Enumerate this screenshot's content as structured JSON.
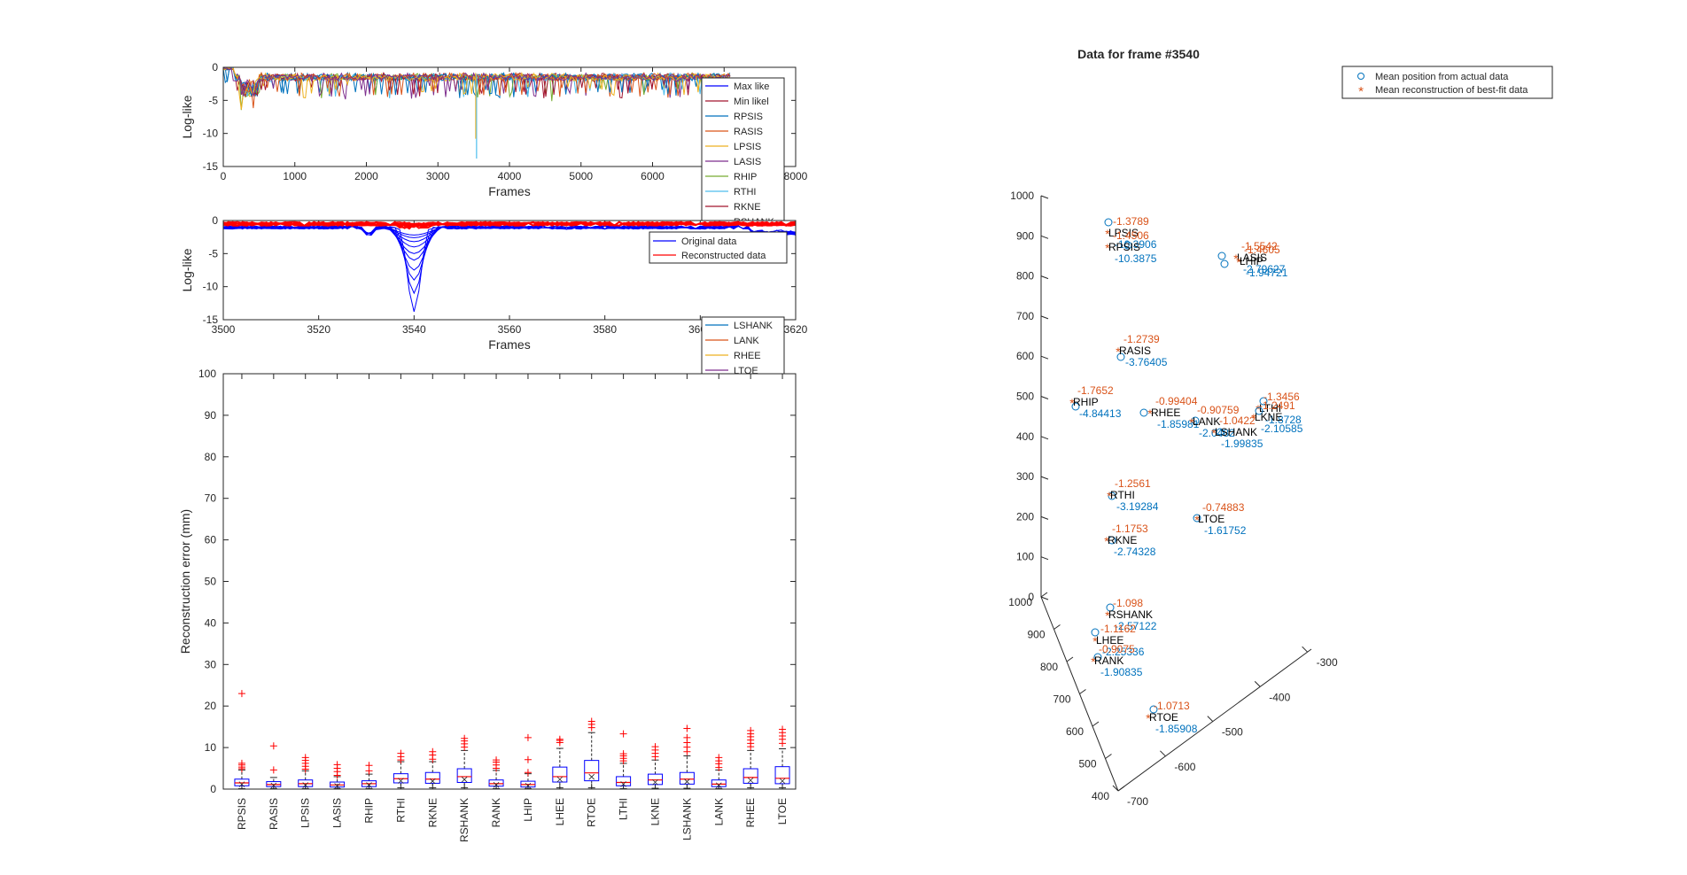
{
  "figure": {
    "colors": {
      "axis": "#262626",
      "blue": "#0072BD",
      "orange": "#D95319",
      "yellow": "#EDB120",
      "purple": "#7E2F8E",
      "green": "#77AC30",
      "cyan": "#4DBEEE",
      "dred": "#A2142F",
      "pureblue": "#0000FF",
      "purered": "#FF0000"
    }
  },
  "chart_data": [
    {
      "id": "loglike_full",
      "type": "line",
      "xlabel": "Frames",
      "ylabel": "Log-like",
      "xlim": [
        0,
        8000
      ],
      "ylim": [
        -15,
        0
      ],
      "xticks": [
        0,
        1000,
        2000,
        3000,
        4000,
        5000,
        6000,
        7000,
        8000
      ],
      "xtick_labels": [
        "0",
        "1000",
        "2000",
        "3000",
        "4000",
        "5000",
        "6000",
        "",
        "8000"
      ],
      "yticks": [
        -15,
        -10,
        -5,
        0
      ],
      "data_extent": [
        0,
        7100
      ],
      "baseline": -1.2,
      "early_dip": {
        "x": [
          250,
          500
        ],
        "y": -4.5
      },
      "spike": {
        "x": 3540,
        "y": -13.8
      },
      "legend": {
        "location": "northeast",
        "entries": [
          {
            "name": "Max like",
            "color": "#0000FF"
          },
          {
            "name": "Min likel",
            "color": "#A2142F"
          },
          {
            "name": "RPSIS",
            "color": "#0072BD"
          },
          {
            "name": "RASIS",
            "color": "#D95319"
          },
          {
            "name": "LPSIS",
            "color": "#EDB120"
          },
          {
            "name": "LASIS",
            "color": "#7E2F8E"
          },
          {
            "name": "RHIP",
            "color": "#77AC30"
          },
          {
            "name": "RTHI",
            "color": "#4DBEEE"
          },
          {
            "name": "RKNE",
            "color": "#A2142F"
          },
          {
            "name": "RSHANK",
            "color": "#0072BD"
          },
          {
            "name": "LSHANK",
            "color": "#0072BD"
          },
          {
            "name": "LANK",
            "color": "#D95319"
          },
          {
            "name": "RHEE",
            "color": "#EDB120"
          },
          {
            "name": "LTOE",
            "color": "#7E2F8E"
          }
        ]
      }
    },
    {
      "id": "loglike_zoom",
      "type": "line",
      "xlabel": "Frames",
      "ylabel": "Log-like",
      "xlim": [
        3500,
        3620
      ],
      "ylim": [
        -15,
        0
      ],
      "xticks": [
        3500,
        3520,
        3540,
        3560,
        3580,
        3600,
        3620
      ],
      "xtick_labels": [
        "3500",
        "3520",
        "3540",
        "3560",
        "3580",
        "3600",
        "3620"
      ],
      "yticks": [
        -15,
        -10,
        -5,
        0
      ],
      "original_dip": {
        "x": 3540,
        "minima": [
          -13.8,
          -11,
          -9,
          -7.5,
          -6,
          -5,
          -4,
          -3.2,
          -2.6,
          -2.2
        ]
      },
      "legend": {
        "location": "northeast",
        "entries": [
          {
            "name": "Original data",
            "color": "#0000FF"
          },
          {
            "name": "Reconstructed data",
            "color": "#FF0000"
          }
        ]
      }
    },
    {
      "id": "recon_error_box",
      "type": "box",
      "ylabel": "Reconstruction error (mm)",
      "ylim": [
        0,
        100
      ],
      "yticks": [
        0,
        10,
        20,
        30,
        40,
        50,
        60,
        70,
        80,
        90,
        100
      ],
      "categories": [
        "RPSIS",
        "RASIS",
        "LPSIS",
        "LASIS",
        "RHIP",
        "RTHI",
        "RKNE",
        "RSHANK",
        "RANK",
        "LHIP",
        "LHEE",
        "RTOE",
        "LTHI",
        "LKNE",
        "LSHANK",
        "LANK",
        "RHEE",
        "LTOE"
      ],
      "boxes": [
        {
          "q1": 0.8,
          "median": 1.5,
          "q3": 2.4,
          "whisker_low": 0.1,
          "whisker_high": 4.6,
          "outliers": [
            4.9,
            5.3,
            5.8,
            6.2,
            23.0
          ]
        },
        {
          "q1": 0.6,
          "median": 1.1,
          "q3": 1.8,
          "whisker_low": 0.1,
          "whisker_high": 2.8,
          "outliers": [
            4.6,
            10.4
          ]
        },
        {
          "q1": 0.6,
          "median": 1.3,
          "q3": 2.2,
          "whisker_low": 0.1,
          "whisker_high": 4.4,
          "outliers": [
            4.8,
            5.5,
            6.2,
            6.9,
            7.6
          ]
        },
        {
          "q1": 0.5,
          "median": 1.0,
          "q3": 1.7,
          "whisker_low": 0.1,
          "whisker_high": 3.0,
          "outliers": [
            3.3,
            4.2,
            5.0,
            5.9
          ]
        },
        {
          "q1": 0.6,
          "median": 1.3,
          "q3": 2.0,
          "whisker_low": 0.1,
          "whisker_high": 3.6,
          "outliers": [
            4.4,
            5.7
          ]
        },
        {
          "q1": 1.5,
          "median": 2.5,
          "q3": 3.7,
          "whisker_low": 0.3,
          "whisker_high": 6.6,
          "outliers": [
            7.0,
            7.8,
            8.6
          ]
        },
        {
          "q1": 1.4,
          "median": 2.4,
          "q3": 4.0,
          "whisker_low": 0.3,
          "whisker_high": 6.6,
          "outliers": [
            7.2,
            8.2,
            9.0
          ]
        },
        {
          "q1": 1.6,
          "median": 3.0,
          "q3": 4.9,
          "whisker_low": 0.3,
          "whisker_high": 9.3,
          "outliers": [
            10.1,
            10.9,
            11.6,
            12.2
          ]
        },
        {
          "q1": 0.7,
          "median": 1.3,
          "q3": 2.2,
          "whisker_low": 0.1,
          "whisker_high": 4.5,
          "outliers": [
            5.0,
            5.8,
            6.5,
            7.0
          ]
        },
        {
          "q1": 0.5,
          "median": 1.1,
          "q3": 1.9,
          "whisker_low": 0.1,
          "whisker_high": 3.7,
          "outliers": [
            4.0,
            7.1,
            12.4
          ]
        },
        {
          "q1": 1.7,
          "median": 3.0,
          "q3": 5.3,
          "whisker_low": 0.3,
          "whisker_high": 9.8,
          "outliers": [
            11.2,
            11.7,
            12.0
          ]
        },
        {
          "q1": 2.0,
          "median": 3.9,
          "q3": 6.9,
          "whisker_low": 0.3,
          "whisker_high": 13.6,
          "outliers": [
            14.8,
            15.6,
            16.3
          ]
        },
        {
          "q1": 0.8,
          "median": 1.6,
          "q3": 3.0,
          "whisker_low": 0.1,
          "whisker_high": 6.2,
          "outliers": [
            6.8,
            7.4,
            8.0,
            8.5,
            13.3
          ]
        },
        {
          "q1": 1.1,
          "median": 2.2,
          "q3": 3.6,
          "whisker_low": 0.2,
          "whisker_high": 7.0,
          "outliers": [
            7.8,
            8.6,
            9.4,
            10.2
          ]
        },
        {
          "q1": 1.2,
          "median": 2.4,
          "q3": 4.0,
          "whisker_low": 0.2,
          "whisker_high": 8.0,
          "outliers": [
            9.0,
            10.1,
            11.2,
            12.4,
            14.6
          ]
        },
        {
          "q1": 0.6,
          "median": 1.2,
          "q3": 2.2,
          "whisker_low": 0.1,
          "whisker_high": 4.6,
          "outliers": [
            5.2,
            6.1,
            6.8,
            7.6
          ]
        },
        {
          "q1": 1.4,
          "median": 2.8,
          "q3": 4.9,
          "whisker_low": 0.3,
          "whisker_high": 9.3,
          "outliers": [
            10.2,
            11.0,
            11.8,
            12.6,
            13.3,
            14.1
          ]
        },
        {
          "q1": 1.3,
          "median": 2.6,
          "q3": 5.4,
          "whisker_low": 0.3,
          "whisker_high": 9.7,
          "outliers": [
            11.0,
            12.0,
            12.8,
            13.6,
            14.4
          ]
        }
      ]
    },
    {
      "id": "frame_3d",
      "type": "scatter3d",
      "title": "Data for frame #3540",
      "legend": {
        "location": "northeast",
        "entries": [
          {
            "name": "Mean position from actual data",
            "marker": "circle",
            "color": "#0072BD"
          },
          {
            "name": "Mean reconstruction of best-fit data",
            "marker": "asterisk",
            "color": "#D95319"
          }
        ]
      },
      "z_axis": {
        "ticks": [
          0,
          100,
          200,
          300,
          400,
          500,
          600,
          700,
          800,
          900,
          1000
        ]
      },
      "x_axis": {
        "ticks": [
          400,
          500,
          600,
          700,
          800,
          900,
          1000
        ]
      },
      "y_axis": {
        "ticks": [
          -700,
          -600,
          -500,
          -400,
          -300
        ]
      },
      "markers": [
        {
          "name": "LPSIS",
          "actual_loglike": "-10.3906",
          "recon_loglike": "-1.3789"
        },
        {
          "name": "RPSIS",
          "actual_loglike": "-10.3875",
          "recon_loglike": "-1.4506"
        },
        {
          "name": "LASIS",
          "actual_loglike": "-2.79627",
          "recon_loglike": "-1.5542"
        },
        {
          "name": "LHIP",
          "actual_loglike": "-1.94721",
          "recon_loglike": "-1.4605"
        },
        {
          "name": "RASIS",
          "actual_loglike": "-3.76405",
          "recon_loglike": "-1.2739"
        },
        {
          "name": "RHIP",
          "actual_loglike": "-4.84413",
          "recon_loglike": "-1.7652"
        },
        {
          "name": "RHEE",
          "actual_loglike": "-1.85981",
          "recon_loglike": "-0.99404"
        },
        {
          "name": "LANK",
          "actual_loglike": "-2.0482",
          "recon_loglike": "-0.90759"
        },
        {
          "name": "LSHANK",
          "actual_loglike": "-1.99835",
          "recon_loglike": "-1.0422"
        },
        {
          "name": "LTHI",
          "actual_loglike": "-1.8728",
          "recon_loglike": "-1.3456"
        },
        {
          "name": "LKNE",
          "actual_loglike": "-2.10585",
          "recon_loglike": "-1.2491"
        },
        {
          "name": "RTHI",
          "actual_loglike": "-3.19284",
          "recon_loglike": "-1.2561"
        },
        {
          "name": "LTOE",
          "actual_loglike": "-1.61752",
          "recon_loglike": "-0.74883"
        },
        {
          "name": "RKNE",
          "actual_loglike": "-2.74328",
          "recon_loglike": "-1.1753"
        },
        {
          "name": "RSHANK",
          "actual_loglike": "-2.57122",
          "recon_loglike": "-1.098"
        },
        {
          "name": "LHEE",
          "actual_loglike": "-2.25336",
          "recon_loglike": "-1.1162"
        },
        {
          "name": "RANK",
          "actual_loglike": "-1.90835",
          "recon_loglike": "-0.9075"
        },
        {
          "name": "RTOE",
          "actual_loglike": "-1.85908",
          "recon_loglike": "-1.0713"
        }
      ]
    }
  ]
}
